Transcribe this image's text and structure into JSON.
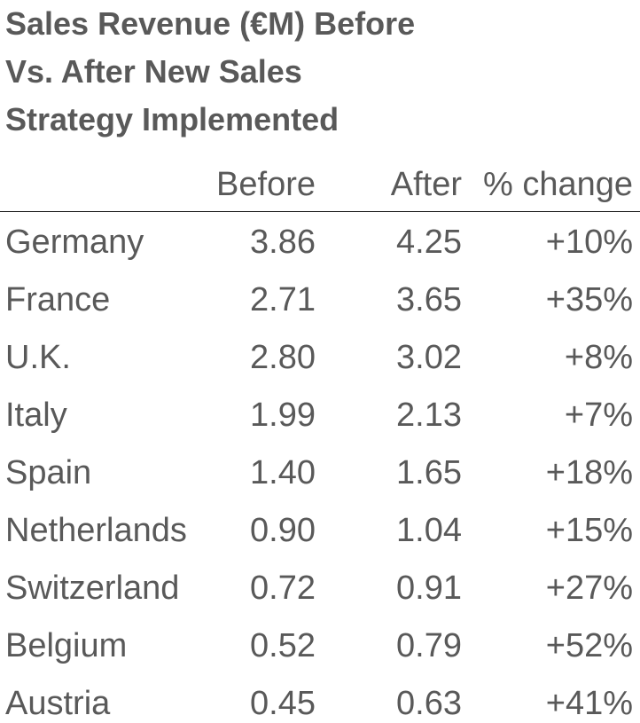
{
  "chart_data": {
    "type": "table",
    "title_lines": [
      "Sales Revenue (€M) Before",
      "Vs. After New Sales",
      "Strategy Implemented"
    ],
    "columns": [
      "",
      "Before",
      "After",
      "% change"
    ],
    "rows": [
      {
        "country": "Germany",
        "before": "3.86",
        "after": "4.25",
        "change": "+10%"
      },
      {
        "country": "France",
        "before": "2.71",
        "after": "3.65",
        "change": "+35%"
      },
      {
        "country": "U.K.",
        "before": "2.80",
        "after": "3.02",
        "change": "+8%"
      },
      {
        "country": "Italy",
        "before": "1.99",
        "after": "2.13",
        "change": "+7%"
      },
      {
        "country": "Spain",
        "before": "1.40",
        "after": "1.65",
        "change": "+18%"
      },
      {
        "country": "Netherlands",
        "before": "0.90",
        "after": "1.04",
        "change": "+15%"
      },
      {
        "country": "Switzerland",
        "before": "0.72",
        "after": "0.91",
        "change": "+27%"
      },
      {
        "country": "Belgium",
        "before": "0.52",
        "after": "0.79",
        "change": "+52%"
      },
      {
        "country": "Austria",
        "before": "0.45",
        "after": "0.63",
        "change": "+41%"
      }
    ]
  },
  "colors": {
    "text": "#595959",
    "rule": "#1a1a1a"
  }
}
